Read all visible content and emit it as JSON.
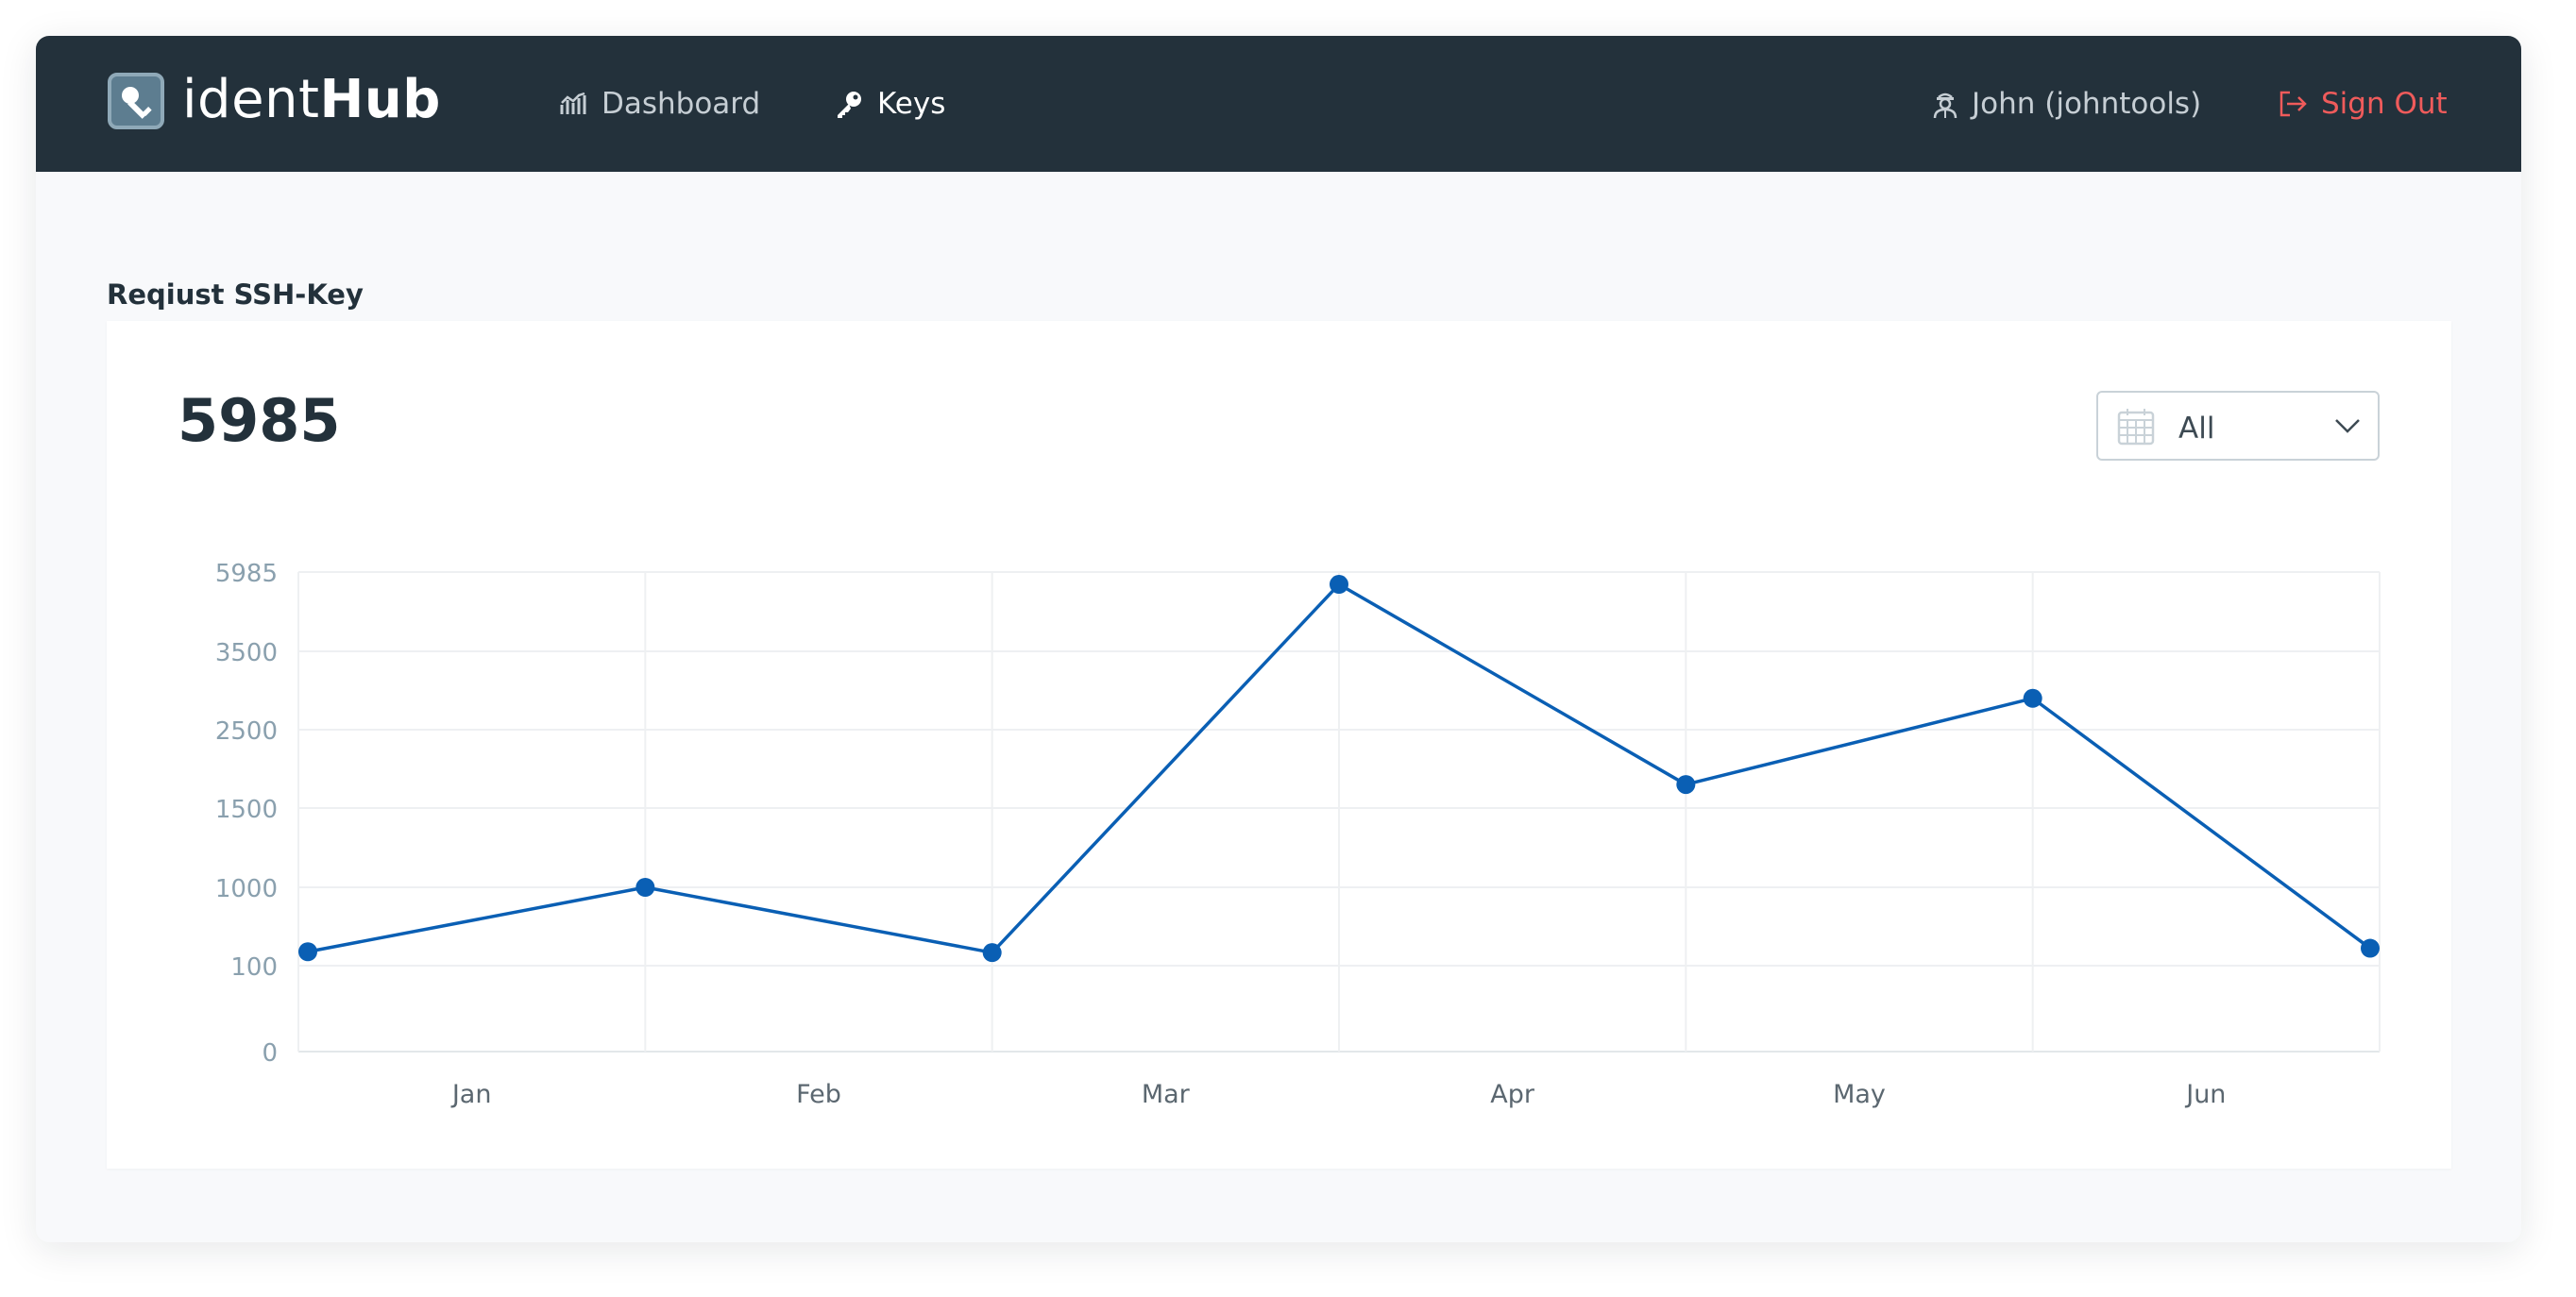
{
  "brand": {
    "light": "ident",
    "bold": "Hub"
  },
  "nav": {
    "dashboard_label": "Dashboard",
    "keys_label": "Keys",
    "user_label": "John (johntools)",
    "signout_label": "Sign Out"
  },
  "icons": {
    "logo": "key-square-icon",
    "dashboard": "chart-icon",
    "keys": "key-icon",
    "user": "user-icon",
    "signout": "sign-out-icon",
    "calendar": "calendar-icon",
    "chevron": "chevron-down-icon"
  },
  "colors": {
    "navbar": "#23313b",
    "accent": "#0a5fb4",
    "signout": "#ef5b5b"
  },
  "page": {
    "section_title": "Reqiust SSH-Key",
    "total_value": "5985",
    "filter": {
      "selected": "All"
    }
  },
  "chart_data": {
    "type": "line",
    "title": "",
    "xlabel": "",
    "ylabel": "",
    "x_ticks": [
      "Jan",
      "Feb",
      "Mar",
      "Apr",
      "May",
      "Jun"
    ],
    "y_ticks": [
      "0",
      "100",
      "1000",
      "1500",
      "2500",
      "3500",
      "5985"
    ],
    "y_scale": "categorical-ticks (non-linear, evenly spaced labels)",
    "grid": true,
    "legend": "none",
    "series": [
      {
        "values": [
          260,
          1000,
          250,
          5600,
          1800,
          2900,
          300
        ]
      }
    ]
  }
}
